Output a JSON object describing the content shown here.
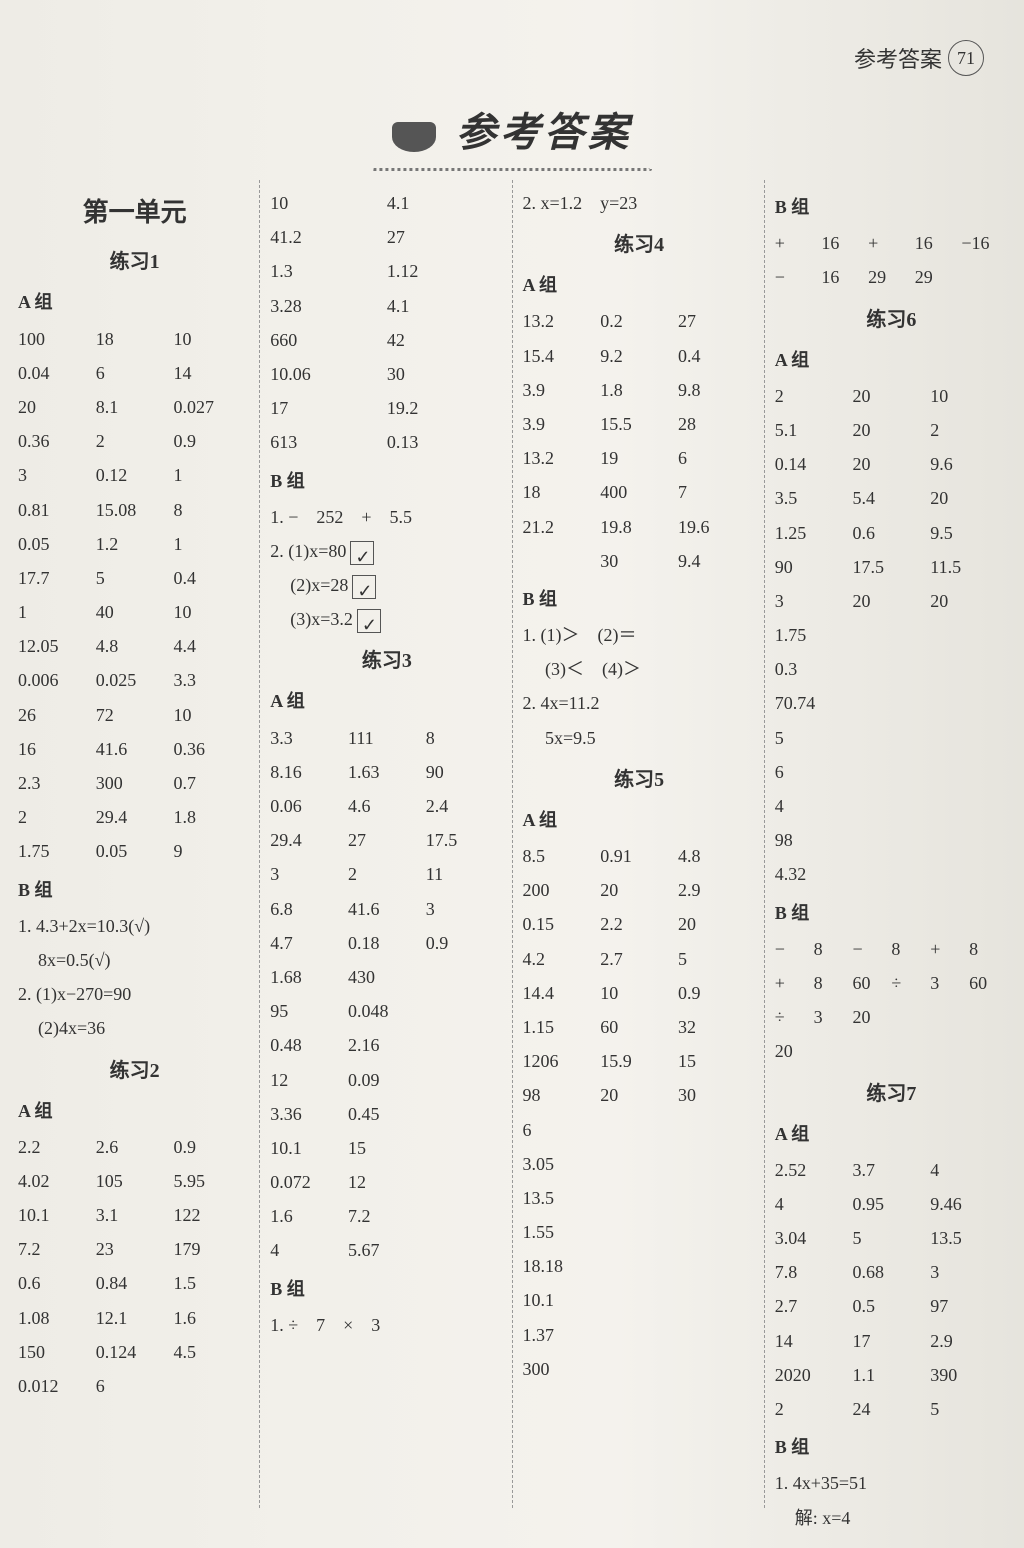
{
  "page": {
    "header_label": "参考答案",
    "page_number": "71",
    "main_title": "参考答案"
  },
  "col1": {
    "unit": "第一单元",
    "ex1": "练习1",
    "groupA": "A 组",
    "a_rows": [
      [
        "100",
        "18",
        "10"
      ],
      [
        "0.04",
        "6",
        "14"
      ],
      [
        "20",
        "8.1",
        "0.027"
      ],
      [
        "0.36",
        "2",
        "0.9"
      ],
      [
        "3",
        "0.12",
        "1"
      ],
      [
        "0.81",
        "15.08",
        "8"
      ],
      [
        "0.05",
        "1.2",
        "1"
      ],
      [
        "17.7",
        "5",
        "0.4"
      ],
      [
        "1",
        "40",
        "10"
      ],
      [
        "12.05",
        "4.8",
        "4.4"
      ],
      [
        "0.006",
        "0.025",
        "3.3"
      ],
      [
        "26",
        "72",
        "10"
      ],
      [
        "16",
        "41.6",
        "0.36"
      ],
      [
        "2.3",
        "300",
        "0.7"
      ],
      [
        "2",
        "29.4",
        "1.8"
      ],
      [
        "1.75",
        "0.05",
        "9"
      ]
    ],
    "groupB": "B 组",
    "b_lines": [
      "1. 4.3+2x=10.3(√)",
      "8x=0.5(√)",
      "2. (1)x−270=90",
      "(2)4x=36"
    ],
    "ex2": "练习2",
    "ex2_groupA": "A 组",
    "ex2_rows": [
      [
        "2.2",
        "2.6",
        "0.9"
      ],
      [
        "4.02",
        "105",
        "5.95"
      ],
      [
        "10.1",
        "3.1",
        "122"
      ],
      [
        "7.2",
        "23",
        "179"
      ],
      [
        "0.6",
        "0.84",
        "1.5"
      ],
      [
        "1.08",
        "12.1",
        "1.6"
      ],
      [
        "150",
        "0.124",
        "4.5"
      ],
      [
        "0.012",
        "6",
        ""
      ]
    ]
  },
  "col2": {
    "top_rows": [
      [
        "10",
        "4.1"
      ],
      [
        "41.2",
        "27"
      ],
      [
        "1.3",
        "1.12"
      ],
      [
        "3.28",
        "4.1"
      ],
      [
        "660",
        "42"
      ],
      [
        "10.06",
        "30"
      ],
      [
        "17",
        "19.2"
      ],
      [
        "613",
        "0.13"
      ]
    ],
    "groupB": "B 组",
    "b1": "1. −　252　+　5.5",
    "b2a": "2. (1)x=80",
    "b2b": "(2)x=28",
    "b2c": "(3)x=3.2",
    "ex3": "练习3",
    "ex3_groupA": "A 组",
    "ex3_rows": [
      [
        "3.3",
        "111",
        "8"
      ],
      [
        "8.16",
        "1.63",
        "90"
      ],
      [
        "0.06",
        "4.6",
        "2.4"
      ],
      [
        "29.4",
        "27",
        "17.5"
      ],
      [
        "3",
        "2",
        "11"
      ],
      [
        "6.8",
        "41.6",
        "3"
      ],
      [
        "4.7",
        "0.18",
        "0.9"
      ],
      [
        "1.68",
        "430",
        ""
      ],
      [
        "95",
        "0.048",
        ""
      ],
      [
        "0.48",
        "2.16",
        ""
      ],
      [
        "12",
        "0.09",
        ""
      ],
      [
        "3.36",
        "0.45",
        ""
      ],
      [
        "10.1",
        "15",
        ""
      ],
      [
        "0.072",
        "12",
        ""
      ],
      [
        "1.6",
        "7.2",
        ""
      ],
      [
        "4",
        "5.67",
        ""
      ]
    ],
    "ex3_groupB": "B 组",
    "ex3_b1": "1. ÷　7　×　3"
  },
  "col3": {
    "top": "2. x=1.2　y=23",
    "ex4": "练习4",
    "groupA": "A 组",
    "a_rows": [
      [
        "13.2",
        "0.2",
        "27"
      ],
      [
        "15.4",
        "9.2",
        "0.4"
      ],
      [
        "3.9",
        "1.8",
        "9.8"
      ],
      [
        "3.9",
        "15.5",
        "28"
      ],
      [
        "13.2",
        "19",
        "6"
      ],
      [
        "18",
        "400",
        "7"
      ],
      [
        "21.2",
        "19.8",
        "19.6"
      ],
      [
        "",
        "30",
        "9.4"
      ]
    ],
    "groupB": "B 组",
    "b_lines": [
      "1. (1)＞　(2)＝",
      "　 (3)＜　(4)＞",
      "2. 4x=11.2",
      "　 5x=9.5"
    ],
    "ex5": "练习5",
    "ex5_groupA": "A 组",
    "ex5_rows": [
      [
        "8.5",
        "0.91",
        "4.8"
      ],
      [
        "200",
        "20",
        "2.9"
      ],
      [
        "0.15",
        "2.2",
        "20"
      ],
      [
        "4.2",
        "2.7",
        "5"
      ],
      [
        "14.4",
        "10",
        "0.9"
      ],
      [
        "1.15",
        "60",
        "32"
      ],
      [
        "1206",
        "15.9",
        "15"
      ],
      [
        "98",
        "20",
        "30"
      ],
      [
        "6",
        "",
        ""
      ],
      [
        "3.05",
        "",
        ""
      ],
      [
        "13.5",
        "",
        ""
      ],
      [
        "1.55",
        "",
        ""
      ],
      [
        "18.18",
        "",
        ""
      ],
      [
        "10.1",
        "",
        ""
      ],
      [
        "1.37",
        "",
        ""
      ],
      [
        "300",
        "",
        ""
      ]
    ]
  },
  "col4": {
    "groupB_top": "B 组",
    "b_top_rows": [
      [
        "+",
        "16",
        "+",
        "16",
        "−16"
      ],
      [
        "−",
        "16",
        "29",
        "29",
        ""
      ]
    ],
    "ex6": "练习6",
    "groupA": "A 组",
    "a_rows": [
      [
        "2",
        "20",
        "10"
      ],
      [
        "5.1",
        "20",
        "2"
      ],
      [
        "0.14",
        "20",
        "9.6"
      ],
      [
        "3.5",
        "5.4",
        "20"
      ],
      [
        "1.25",
        "0.6",
        "9.5"
      ],
      [
        "90",
        "17.5",
        "11.5"
      ],
      [
        "3",
        "20",
        "20"
      ],
      [
        "1.75",
        "",
        ""
      ],
      [
        "0.3",
        "",
        ""
      ],
      [
        "70.74",
        "",
        ""
      ],
      [
        "5",
        "",
        ""
      ],
      [
        "6",
        "",
        ""
      ],
      [
        "4",
        "",
        ""
      ],
      [
        "98",
        "",
        ""
      ],
      [
        "4.32",
        "",
        ""
      ]
    ],
    "groupB": "B 组",
    "b_rows": [
      [
        "−",
        "8",
        "−",
        "8",
        "+",
        "8"
      ],
      [
        "+",
        "8",
        "60",
        "÷",
        "3",
        "60"
      ],
      [
        "÷",
        "3",
        "20",
        "",
        "",
        ""
      ]
    ],
    "b_extra": "20",
    "ex7": "练习7",
    "ex7_groupA": "A 组",
    "ex7_rows": [
      [
        "2.52",
        "3.7",
        "4"
      ],
      [
        "4",
        "0.95",
        "9.46"
      ],
      [
        "3.04",
        "5",
        "13.5"
      ],
      [
        "7.8",
        "0.68",
        "3"
      ],
      [
        "2.7",
        "0.5",
        "97"
      ],
      [
        "14",
        "17",
        "2.9"
      ],
      [
        "2020",
        "1.1",
        "390"
      ],
      [
        "2",
        "24",
        "5"
      ]
    ],
    "ex7_groupB": "B 组",
    "ex7_b1": "1. 4x+35=51",
    "ex7_b2": "解: x=4"
  }
}
